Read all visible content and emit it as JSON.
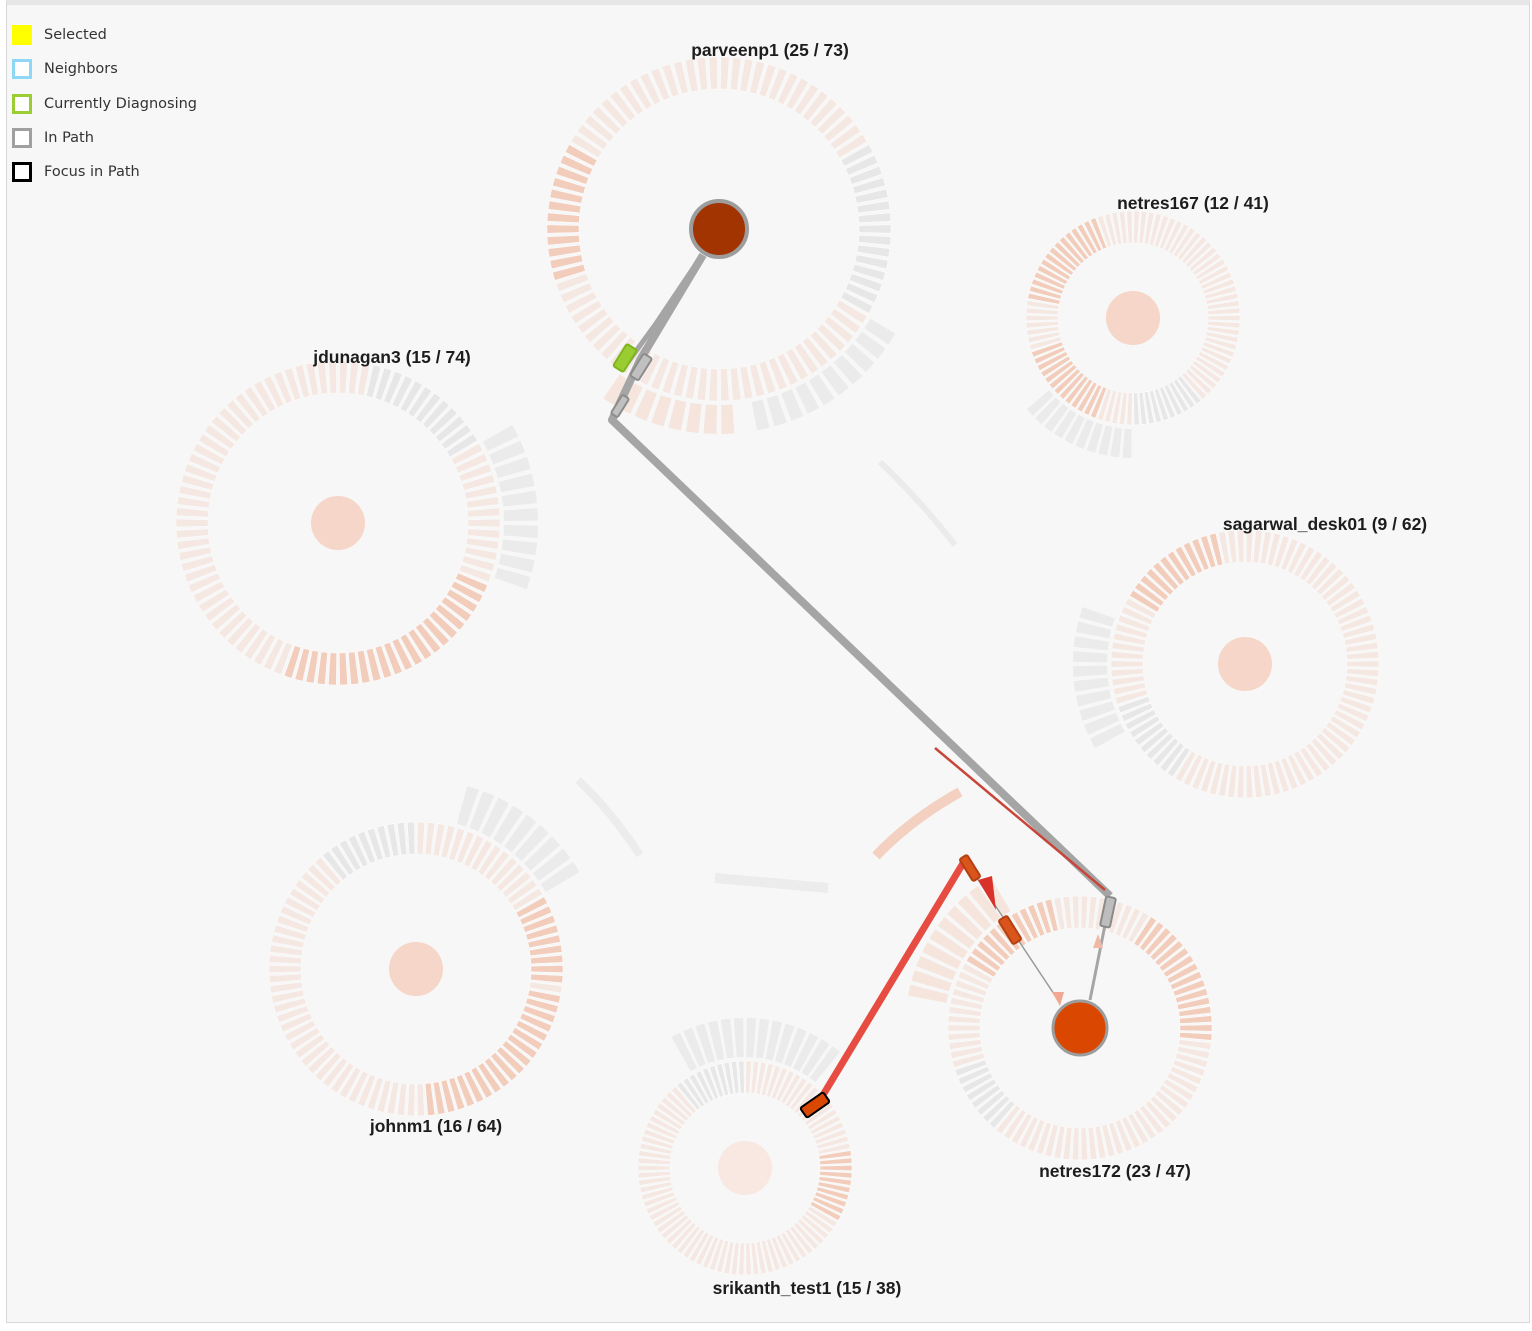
{
  "legend": {
    "items": [
      {
        "label": "Selected",
        "fill": "#ffff00",
        "border": "#ffff00"
      },
      {
        "label": "Neighbors",
        "fill": "#ffffff",
        "border": "#8fd8f5"
      },
      {
        "label": "Currently Diagnosing",
        "fill": "#ffffff",
        "border": "#9acd32"
      },
      {
        "label": "In Path",
        "fill": "#ffffff",
        "border": "#a0a0a0"
      },
      {
        "label": "Focus in Path",
        "fill": "#ffffff",
        "border": "#000000"
      }
    ]
  },
  "hosts": [
    {
      "id": "parveenp1",
      "label": "parveenp1 (25 / 73)"
    },
    {
      "id": "netres167",
      "label": "netres167 (12 / 41)"
    },
    {
      "id": "jdunagan3",
      "label": "jdunagan3 (15 / 74)"
    },
    {
      "id": "sagarwal_desk01",
      "label": "sagarwal_desk01 (9 / 62)"
    },
    {
      "id": "johnm1",
      "label": "johnm1 (16 / 64)"
    },
    {
      "id": "netres172",
      "label": "netres172 (23 / 47)"
    },
    {
      "id": "srikanth_test1",
      "label": "srikanth_test1 (15 / 38)"
    }
  ],
  "colors": {
    "background": "#f7f7f7",
    "ring_faint": "#f4ddd2",
    "ring_accent": "#f2c6b2",
    "ring_grey": "#e6e6e6",
    "path_grey": "#a5a5a5",
    "node_dark": "#a13400",
    "node_orange": "#d94700",
    "edge_red": "#e53a2f",
    "diagnosing_green": "#9acd32"
  }
}
